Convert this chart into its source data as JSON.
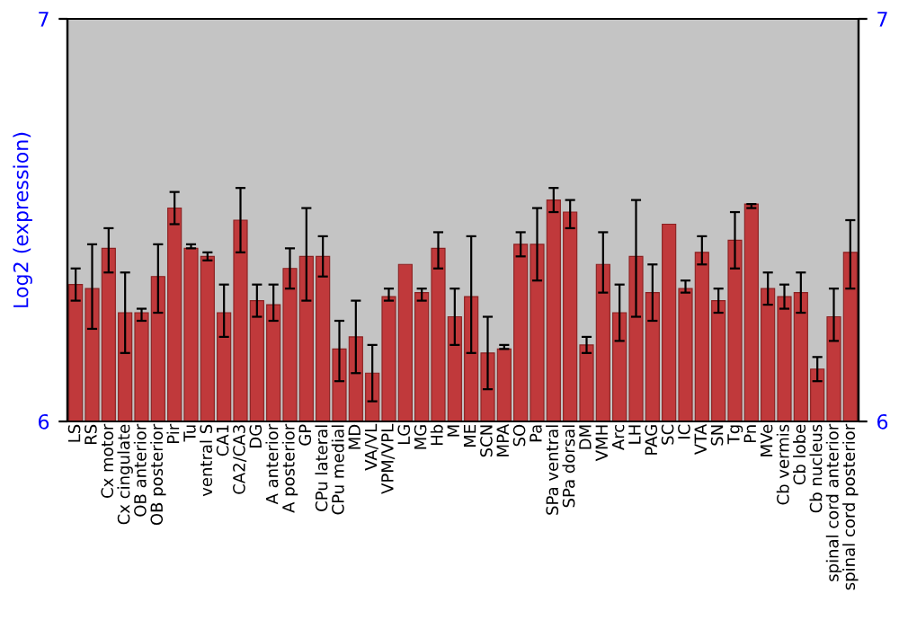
{
  "chart_data": {
    "type": "bar",
    "ylabel": "Log2 (expression)",
    "categories": [
      "LS",
      "RS",
      "Cx motor",
      "Cx cingulate",
      "OB anterior",
      "OB posterior",
      "Pir",
      "Tu",
      "ventral S",
      "CA1",
      "CA2/CA3",
      "DG",
      "A anterior",
      "A posterior",
      "GP",
      "CPu lateral",
      "CPu medial",
      "MD",
      "VA/VL",
      "VPM/VPL",
      "LG",
      "MG",
      "Hb",
      "M",
      "ME",
      "SCN",
      "MPA",
      "SO",
      "Pa",
      "SPa ventral",
      "SPa dorsal",
      "DM",
      "VMH",
      "Arc",
      "LH",
      "PAG",
      "SC",
      "IC",
      "VTA",
      "SN",
      "Tg",
      "Pn",
      "MVe",
      "Cb vermis",
      "Cb lobe",
      "Cb nucleus",
      "spinal cord anterior",
      "spinal cord posterior"
    ],
    "series": [
      {
        "color": "#c0393b",
        "values": [
          6.34,
          6.33,
          6.43,
          6.27,
          6.27,
          6.36,
          6.53,
          6.43,
          6.41,
          6.27,
          6.5,
          6.3,
          6.29,
          6.38,
          6.41,
          6.41,
          6.18,
          6.21,
          6.12,
          6.31,
          6.39,
          6.32,
          6.43,
          6.26,
          6.31,
          6.17,
          6.18,
          6.44,
          6.44,
          6.55,
          6.52,
          6.19,
          6.39,
          6.27,
          6.41,
          6.32,
          6.49,
          6.33,
          6.42,
          6.3,
          6.45,
          6.54,
          6.33,
          6.31,
          6.32,
          6.13,
          6.26,
          6.42
        ],
        "errors": [
          [
            6.3,
            6.38
          ],
          [
            6.23,
            6.44
          ],
          [
            6.37,
            6.48
          ],
          [
            6.17,
            6.37
          ],
          [
            6.25,
            6.28
          ],
          [
            6.27,
            6.44
          ],
          [
            6.49,
            6.57
          ],
          [
            6.43,
            6.44
          ],
          [
            6.4,
            6.42
          ],
          [
            6.21,
            6.34
          ],
          [
            6.42,
            6.58
          ],
          [
            6.26,
            6.34
          ],
          [
            6.25,
            6.34
          ],
          [
            6.33,
            6.43
          ],
          [
            6.3,
            6.53
          ],
          [
            6.36,
            6.46
          ],
          [
            6.1,
            6.25
          ],
          [
            6.12,
            6.3
          ],
          [
            6.05,
            6.19
          ],
          [
            6.3,
            6.33
          ],
          null,
          [
            6.3,
            6.33
          ],
          [
            6.38,
            6.47
          ],
          [
            6.19,
            6.33
          ],
          [
            6.17,
            6.46
          ],
          [
            6.08,
            6.26
          ],
          [
            6.18,
            6.19
          ],
          [
            6.41,
            6.47
          ],
          [
            6.35,
            6.53
          ],
          [
            6.52,
            6.58
          ],
          [
            6.48,
            6.55
          ],
          [
            6.17,
            6.21
          ],
          [
            6.32,
            6.47
          ],
          [
            6.2,
            6.34
          ],
          [
            6.26,
            6.55
          ],
          [
            6.25,
            6.39
          ],
          null,
          [
            6.32,
            6.35
          ],
          [
            6.39,
            6.46
          ],
          [
            6.27,
            6.33
          ],
          [
            6.38,
            6.52
          ],
          [
            6.53,
            6.54
          ],
          [
            6.29,
            6.37
          ],
          [
            6.28,
            6.34
          ],
          [
            6.27,
            6.37
          ],
          [
            6.1,
            6.16
          ],
          [
            6.2,
            6.33
          ],
          [
            6.33,
            6.5
          ]
        ]
      }
    ],
    "ylim": [
      6,
      7
    ],
    "yticks": [
      6,
      7
    ],
    "y2lim": [
      6,
      7
    ],
    "y2ticks": [
      6,
      7
    ],
    "grid": false,
    "legend": false
  }
}
